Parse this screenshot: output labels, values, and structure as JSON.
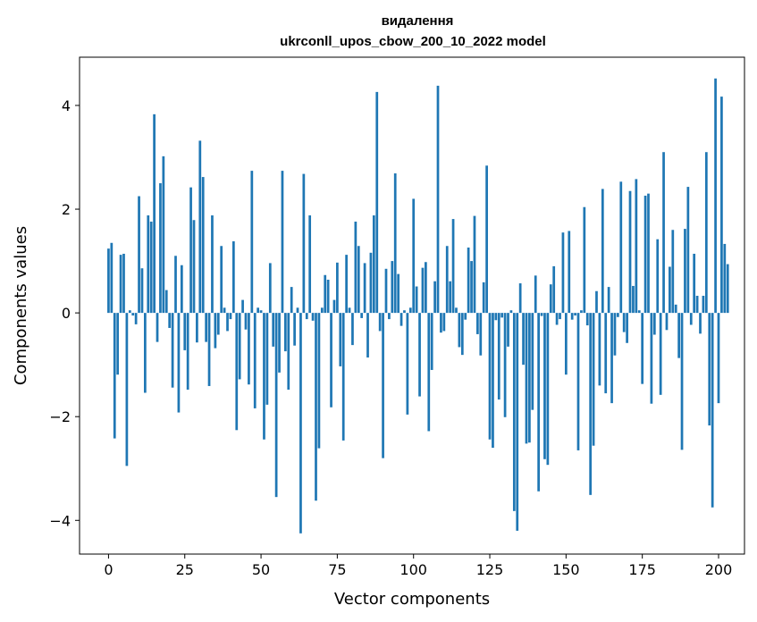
{
  "chart_data": {
    "type": "bar",
    "title_line1": "видалення",
    "title_line2": "ukrconll_upos_cbow_200_10_2022 model",
    "xlabel": "Vector components",
    "ylabel": "Components values",
    "xlim": [
      -9.5,
      208.5
    ],
    "ylim": [
      -4.65,
      4.93
    ],
    "x_ticks": [
      0,
      25,
      50,
      75,
      100,
      125,
      150,
      175,
      200
    ],
    "x_tick_labels": [
      "0",
      "25",
      "50",
      "75",
      "100",
      "125",
      "150",
      "175",
      "200"
    ],
    "y_ticks": [
      -4,
      -2,
      0,
      2,
      4
    ],
    "y_tick_labels": [
      "−4",
      "−2",
      "0",
      "2",
      "4"
    ],
    "bar_color": "#1f77b4",
    "values": [
      1.24,
      1.35,
      -2.42,
      -1.19,
      1.12,
      1.14,
      -2.95,
      0.05,
      -0.05,
      -0.22,
      2.25,
      0.86,
      -1.54,
      1.88,
      1.76,
      3.83,
      -0.56,
      2.5,
      3.02,
      0.44,
      -0.29,
      -1.44,
      1.1,
      -1.92,
      0.92,
      -0.72,
      -1.48,
      2.42,
      1.79,
      -0.57,
      3.32,
      2.62,
      -0.56,
      -1.41,
      1.88,
      -0.68,
      -0.42,
      1.29,
      0.1,
      -0.35,
      -0.12,
      1.38,
      -2.26,
      -1.28,
      0.25,
      -0.32,
      -1.38,
      2.74,
      -1.84,
      0.1,
      0.05,
      -2.44,
      -1.77,
      0.96,
      -0.65,
      -3.55,
      -1.15,
      2.74,
      -0.74,
      -1.48,
      0.5,
      -0.63,
      0.1,
      -4.25,
      2.68,
      -0.12,
      1.88,
      -0.15,
      -3.62,
      -2.61,
      0.1,
      0.73,
      0.64,
      -1.82,
      0.25,
      0.97,
      -1.03,
      -2.46,
      1.12,
      0.1,
      -0.62,
      1.76,
      1.29,
      -0.1,
      0.96,
      -0.86,
      1.16,
      1.88,
      4.26,
      -0.35,
      -2.8,
      0.85,
      -0.12,
      1.0,
      2.69,
      0.75,
      -0.25,
      0.05,
      -1.96,
      0.1,
      2.2,
      0.51,
      -1.61,
      0.87,
      0.98,
      -2.28,
      -1.1,
      0.61,
      4.38,
      -0.38,
      -0.35,
      1.29,
      0.61,
      1.81,
      0.1,
      -0.66,
      -0.81,
      -0.13,
      1.26,
      1.0,
      1.87,
      -0.41,
      -0.82,
      0.59,
      2.84,
      -2.44,
      -2.6,
      -0.14,
      -1.67,
      -0.09,
      -2.01,
      -0.65,
      0.05,
      -3.82,
      -4.2,
      0.57,
      -1.0,
      -2.52,
      -2.5,
      -1.87,
      0.72,
      -3.44,
      -0.06,
      -2.82,
      -2.93,
      0.55,
      0.9,
      -0.23,
      -0.12,
      1.55,
      -1.19,
      1.58,
      -0.13,
      -0.05,
      -2.65,
      0.05,
      2.04,
      -0.24,
      -3.51,
      -2.56,
      0.42,
      -1.4,
      2.39,
      -1.55,
      0.5,
      -1.74,
      -0.82,
      -0.08,
      2.53,
      -0.37,
      -0.58,
      2.35,
      0.52,
      2.58,
      0.05,
      -1.37,
      2.26,
      2.3,
      -1.75,
      -0.42,
      1.42,
      -1.58,
      3.1,
      -0.33,
      0.89,
      1.6,
      0.16,
      -0.87,
      -2.64,
      1.62,
      2.43,
      -0.23,
      1.14,
      0.33,
      -0.4,
      0.33,
      3.1,
      -2.17,
      -3.75,
      4.52,
      -1.74,
      4.17,
      1.33,
      0.94
    ]
  }
}
